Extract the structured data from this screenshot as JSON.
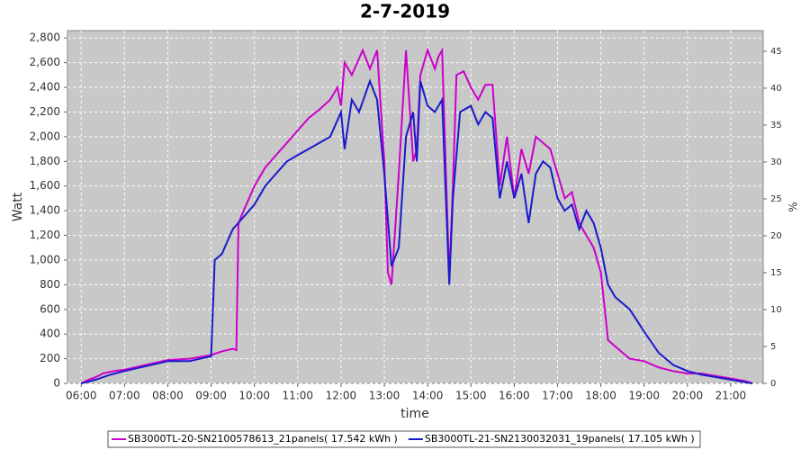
{
  "chart_data": {
    "type": "line",
    "title": "2-7-2019",
    "x_label": "time",
    "y_label": "Watt",
    "y2_label": "%",
    "xlim": [
      "05:41",
      "21:45"
    ],
    "xticks": [
      "06:00",
      "07:00",
      "08:00",
      "09:00",
      "10:00",
      "11:00",
      "12:00",
      "13:00",
      "14:00",
      "15:00",
      "16:00",
      "17:00",
      "18:00",
      "19:00",
      "20:00",
      "21:00"
    ],
    "ylim": [
      0,
      2860
    ],
    "yticks": [
      0,
      200,
      400,
      600,
      800,
      {
        "value": 1000,
        "label": "1,000"
      },
      {
        "value": 1200,
        "label": "1,200"
      },
      {
        "value": 1400,
        "label": "1,400"
      },
      {
        "value": 1600,
        "label": "1,600"
      },
      {
        "value": 1800,
        "label": "1,800"
      },
      {
        "value": 2000,
        "label": "2,000"
      },
      {
        "value": 2200,
        "label": "2,200"
      },
      {
        "value": 2400,
        "label": "2,400"
      },
      {
        "value": 2600,
        "label": "2,600"
      },
      {
        "value": 2800,
        "label": "2,800"
      }
    ],
    "y2lim": [
      0,
      47.8
    ],
    "y2ticks": [
      0,
      5,
      10,
      15,
      20,
      25,
      30,
      35,
      40,
      45
    ],
    "grid": true,
    "legend": "bottom",
    "series": [
      {
        "name": "SB3000TL-20-SN2100578613_21panels( 17.542 kWh )",
        "color": "#cc00cc",
        "x": [
          "06:00",
          "06:10",
          "06:20",
          "06:30",
          "06:45",
          "07:00",
          "07:30",
          "08:00",
          "08:30",
          "09:00",
          "09:15",
          "09:30",
          "09:35",
          "09:38",
          "09:45",
          "10:00",
          "10:15",
          "10:30",
          "10:45",
          "11:00",
          "11:15",
          "11:30",
          "11:45",
          "11:55",
          "12:00",
          "12:05",
          "12:15",
          "12:30",
          "12:40",
          "12:50",
          "13:00",
          "13:05",
          "13:10",
          "13:20",
          "13:30",
          "13:40",
          "13:45",
          "13:50",
          "14:00",
          "14:10",
          "14:15",
          "14:20",
          "14:30",
          "14:35",
          "14:40",
          "14:50",
          "15:00",
          "15:10",
          "15:20",
          "15:30",
          "15:40",
          "15:50",
          "16:00",
          "16:10",
          "16:20",
          "16:30",
          "16:40",
          "16:50",
          "17:00",
          "17:10",
          "17:20",
          "17:30",
          "17:40",
          "17:50",
          "18:00",
          "18:10",
          "18:20",
          "18:30",
          "18:40",
          "19:00",
          "19:20",
          "19:40",
          "20:00",
          "20:20",
          "20:40",
          "21:00",
          "21:20",
          "21:30"
        ],
        "values": [
          0,
          30,
          50,
          80,
          100,
          110,
          150,
          190,
          200,
          230,
          260,
          280,
          270,
          1300,
          1400,
          1600,
          1750,
          1850,
          1950,
          2050,
          2150,
          2220,
          2300,
          2400,
          2250,
          2600,
          2500,
          2700,
          2550,
          2700,
          1800,
          900,
          800,
          1700,
          2700,
          1800,
          1900,
          2500,
          2700,
          2550,
          2650,
          2700,
          850,
          1600,
          2500,
          2530,
          2400,
          2300,
          2420,
          2420,
          1600,
          2000,
          1500,
          1900,
          1700,
          2000,
          1950,
          1900,
          1700,
          1500,
          1550,
          1300,
          1200,
          1100,
          900,
          350,
          300,
          250,
          200,
          180,
          130,
          100,
          80,
          80,
          60,
          40,
          20,
          0
        ]
      },
      {
        "name": "SB3000TL-21-SN2130032031_19panels( 17.105 kWh )",
        "color": "#1a1acc",
        "x": [
          "06:00",
          "06:20",
          "06:40",
          "07:00",
          "07:30",
          "08:00",
          "08:30",
          "09:00",
          "09:05",
          "09:15",
          "09:30",
          "09:45",
          "10:00",
          "10:15",
          "10:30",
          "10:45",
          "11:00",
          "11:15",
          "11:30",
          "11:45",
          "12:00",
          "12:05",
          "12:15",
          "12:25",
          "12:40",
          "12:50",
          "13:00",
          "13:10",
          "13:20",
          "13:30",
          "13:40",
          "13:45",
          "13:50",
          "14:00",
          "14:10",
          "14:20",
          "14:30",
          "14:35",
          "14:45",
          "15:00",
          "15:10",
          "15:20",
          "15:30",
          "15:40",
          "15:50",
          "16:00",
          "16:10",
          "16:20",
          "16:30",
          "16:40",
          "16:50",
          "17:00",
          "17:10",
          "17:20",
          "17:30",
          "17:40",
          "17:50",
          "18:00",
          "18:10",
          "18:20",
          "18:40",
          "19:00",
          "19:20",
          "19:40",
          "20:00",
          "20:20",
          "20:40",
          "21:00",
          "21:20",
          "21:30"
        ],
        "values": [
          0,
          30,
          70,
          100,
          140,
          180,
          180,
          220,
          1000,
          1050,
          1250,
          1350,
          1450,
          1600,
          1700,
          1800,
          1850,
          1900,
          1950,
          2000,
          2200,
          1900,
          2300,
          2200,
          2450,
          2300,
          1700,
          950,
          1100,
          2000,
          2200,
          1800,
          2450,
          2250,
          2200,
          2300,
          800,
          1500,
          2200,
          2250,
          2100,
          2200,
          2150,
          1500,
          1800,
          1500,
          1700,
          1300,
          1700,
          1800,
          1750,
          1500,
          1400,
          1450,
          1250,
          1400,
          1300,
          1100,
          800,
          700,
          600,
          420,
          250,
          150,
          100,
          70,
          50,
          30,
          10,
          0
        ]
      }
    ]
  }
}
